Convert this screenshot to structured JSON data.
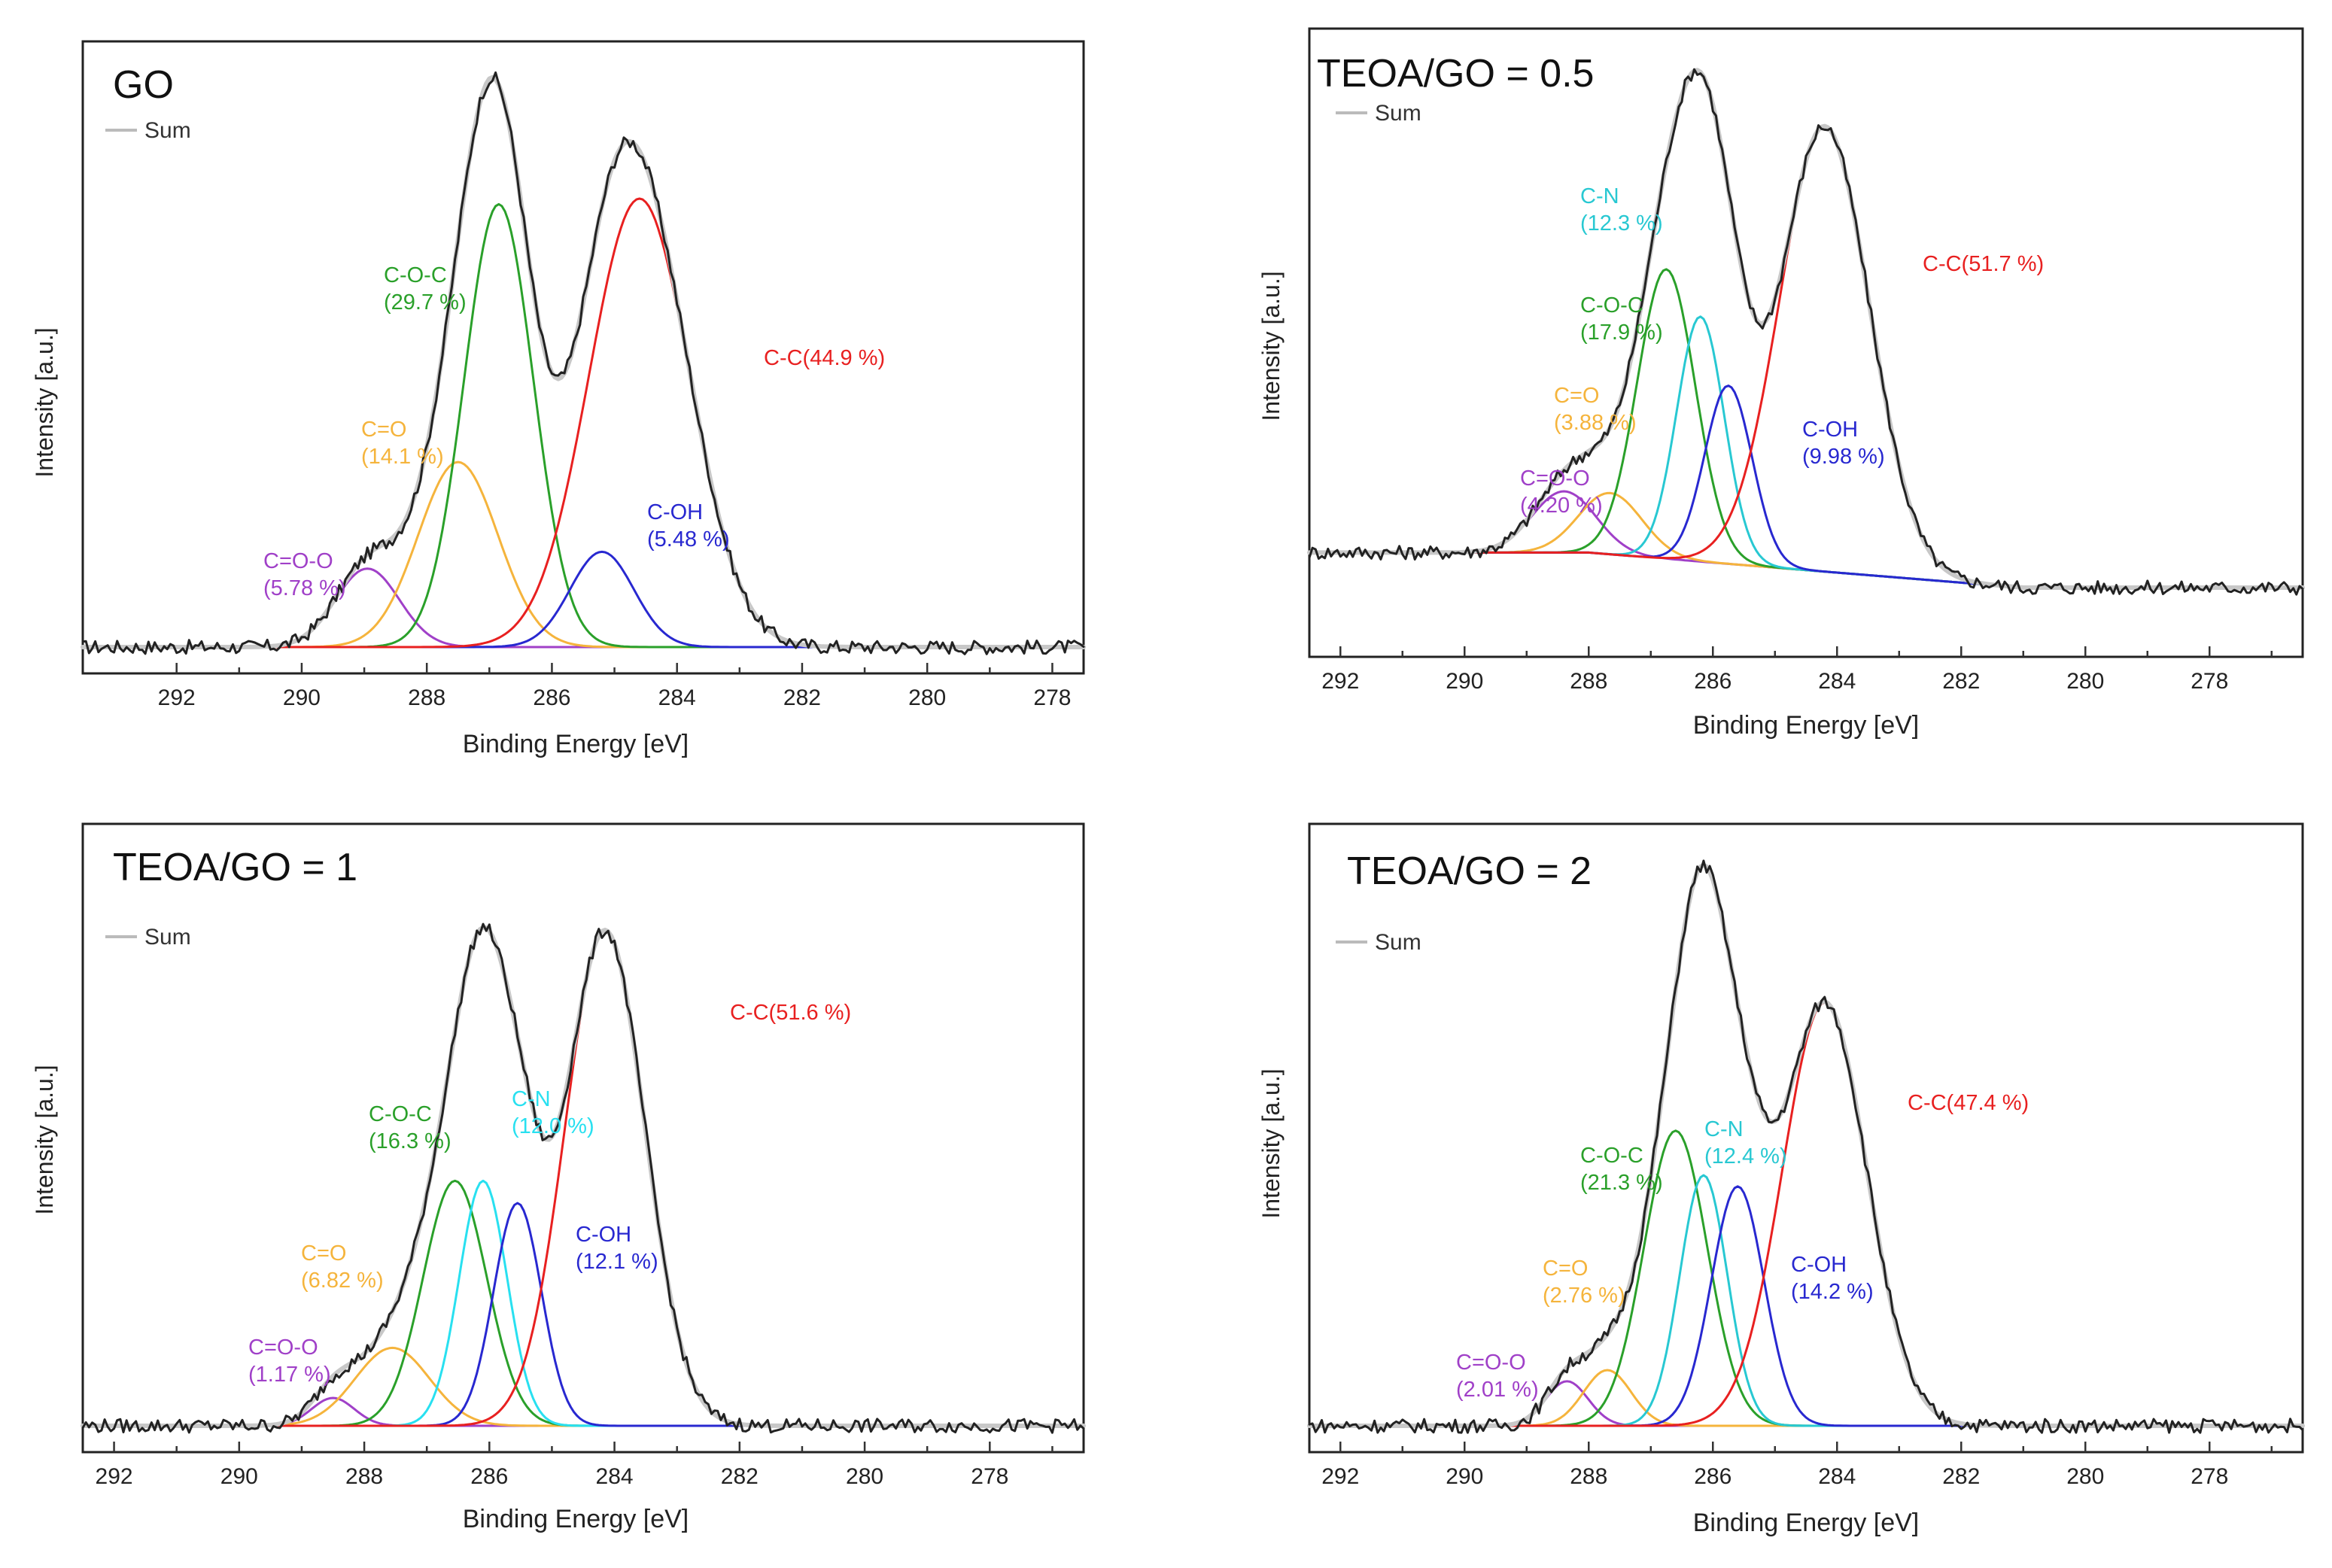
{
  "chart_data": [
    {
      "type": "line",
      "title": "GO",
      "xlabel": "Binding Energy [eV]",
      "ylabel": "Intensity [a.u.]",
      "xlim": [
        293.5,
        277.5
      ],
      "ylim": [
        0,
        1.0
      ],
      "xticks": [
        "292",
        "290",
        "288",
        "286",
        "284",
        "282",
        "280",
        "278"
      ],
      "legend": "Sum",
      "baseline": 0.0,
      "series": [
        {
          "name": "C=O-O",
          "label": "C=O-O",
          "pct": "(5.78 %)",
          "center": 288.95,
          "height": 0.14,
          "fwhm": 1.2,
          "color": "#a040c8"
        },
        {
          "name": "C=O",
          "label": "C=O",
          "pct": "(14.1 %)",
          "center": 287.5,
          "height": 0.33,
          "fwhm": 1.5,
          "color": "#f5b43c"
        },
        {
          "name": "C-O-C",
          "label": "C-O-C",
          "pct": "(29.7 %)",
          "center": 286.85,
          "height": 0.79,
          "fwhm": 1.3,
          "color": "#2aa02a"
        },
        {
          "name": "C-OH",
          "label": "C-OH",
          "pct": "(5.48 %)",
          "center": 285.2,
          "height": 0.17,
          "fwhm": 1.2,
          "color": "#2828d0"
        },
        {
          "name": "C-C",
          "label": "C-C(44.9 %)",
          "pct": "",
          "center": 284.6,
          "height": 0.8,
          "fwhm": 1.9,
          "color": "#e82020"
        }
      ]
    },
    {
      "type": "line",
      "title": "TEOA/GO = 0.5",
      "xlabel": "Binding Energy [eV]",
      "ylabel": "Intensity [a.u.]",
      "xlim": [
        292.5,
        276.5
      ],
      "ylim": [
        0,
        1.0
      ],
      "xticks": [
        "292",
        "290",
        "288",
        "286",
        "284",
        "282",
        "280",
        "278"
      ],
      "legend": "Sum",
      "baseline": 0.14,
      "series": [
        {
          "name": "C=O-O",
          "label": "C=O-O",
          "pct": "(4.20 %)",
          "center": 288.4,
          "height": 0.11,
          "fwhm": 1.2,
          "color": "#a040c8"
        },
        {
          "name": "C=O",
          "label": "C=O",
          "pct": "(3.88 %)",
          "center": 287.65,
          "height": 0.11,
          "fwhm": 1.2,
          "color": "#f5b43c"
        },
        {
          "name": "C-O-C",
          "label": "C-O-C",
          "pct": "(17.9 %)",
          "center": 286.75,
          "height": 0.52,
          "fwhm": 1.1,
          "color": "#2aa02a"
        },
        {
          "name": "C-N",
          "label": "C-N",
          "pct": "(12.3 %)",
          "center": 286.2,
          "height": 0.44,
          "fwhm": 0.9,
          "color": "#28c8d2"
        },
        {
          "name": "C-OH",
          "label": "C-OH",
          "pct": "(9.98 %)",
          "center": 285.75,
          "height": 0.32,
          "fwhm": 0.9,
          "color": "#2828d0"
        },
        {
          "name": "C-C",
          "label": "C-C(51.7 %)",
          "pct": "",
          "center": 284.2,
          "height": 0.8,
          "fwhm": 1.7,
          "color": "#e82020"
        }
      ]
    },
    {
      "type": "line",
      "title": "TEOA/GO = 1",
      "xlabel": "Binding Energy [eV]",
      "ylabel": "Intensity [a.u.]",
      "xlim": [
        292.5,
        276.5
      ],
      "ylim": [
        0,
        1.0
      ],
      "xticks": [
        "292",
        "290",
        "288",
        "286",
        "284",
        "282",
        "280",
        "278"
      ],
      "legend": "Sum",
      "baseline": 0.0,
      "series": [
        {
          "name": "C=O-O",
          "label": "C=O-O",
          "pct": "(1.17 %)",
          "center": 288.5,
          "height": 0.05,
          "fwhm": 0.8,
          "color": "#a040c8"
        },
        {
          "name": "C=O",
          "label": "C=O",
          "pct": "(6.82 %)",
          "center": 287.55,
          "height": 0.14,
          "fwhm": 1.4,
          "color": "#f5b43c"
        },
        {
          "name": "C-O-C",
          "label": "C-O-C",
          "pct": "(16.3 %)",
          "center": 286.55,
          "height": 0.44,
          "fwhm": 1.2,
          "color": "#2aa02a"
        },
        {
          "name": "C-N",
          "label": "C-N",
          "pct": "(12.0 %)",
          "center": 286.1,
          "height": 0.44,
          "fwhm": 0.9,
          "color": "#28e0f0"
        },
        {
          "name": "C-OH",
          "label": "C-OH",
          "pct": "(12.1 %)",
          "center": 285.55,
          "height": 0.4,
          "fwhm": 0.9,
          "color": "#2828d0"
        },
        {
          "name": "C-C",
          "label": "C-C(51.6 %)",
          "pct": "",
          "center": 284.15,
          "height": 0.89,
          "fwhm": 1.5,
          "color": "#e82020"
        }
      ]
    },
    {
      "type": "line",
      "title": "TEOA/GO = 2",
      "xlabel": "Binding Energy [eV]",
      "ylabel": "Intensity [a.u.]",
      "xlim": [
        292.5,
        276.5
      ],
      "ylim": [
        0,
        1.0
      ],
      "xticks": [
        "292",
        "290",
        "288",
        "286",
        "284",
        "282",
        "280",
        "278"
      ],
      "legend": "Sum",
      "baseline": 0.0,
      "series": [
        {
          "name": "C=O-O",
          "label": "C=O-O",
          "pct": "(2.01 %)",
          "center": 288.35,
          "height": 0.08,
          "fwhm": 0.8,
          "color": "#a040c8"
        },
        {
          "name": "C=O",
          "label": "C=O",
          "pct": "(2.76 %)",
          "center": 287.7,
          "height": 0.1,
          "fwhm": 0.9,
          "color": "#f5b43c"
        },
        {
          "name": "C-O-C",
          "label": "C-O-C",
          "pct": "(21.3 %)",
          "center": 286.6,
          "height": 0.53,
          "fwhm": 1.2,
          "color": "#2aa02a"
        },
        {
          "name": "C-N",
          "label": "C-N",
          "pct": "(12.4 %)",
          "center": 286.15,
          "height": 0.45,
          "fwhm": 0.9,
          "color": "#28c8d2"
        },
        {
          "name": "C-OH",
          "label": "C-OH",
          "pct": "(14.2 %)",
          "center": 285.6,
          "height": 0.43,
          "fwhm": 1.0,
          "color": "#2828d0"
        },
        {
          "name": "C-C",
          "label": "C-C(47.4 %)",
          "pct": "",
          "center": 284.2,
          "height": 0.76,
          "fwhm": 1.6,
          "color": "#e82020"
        }
      ]
    }
  ]
}
